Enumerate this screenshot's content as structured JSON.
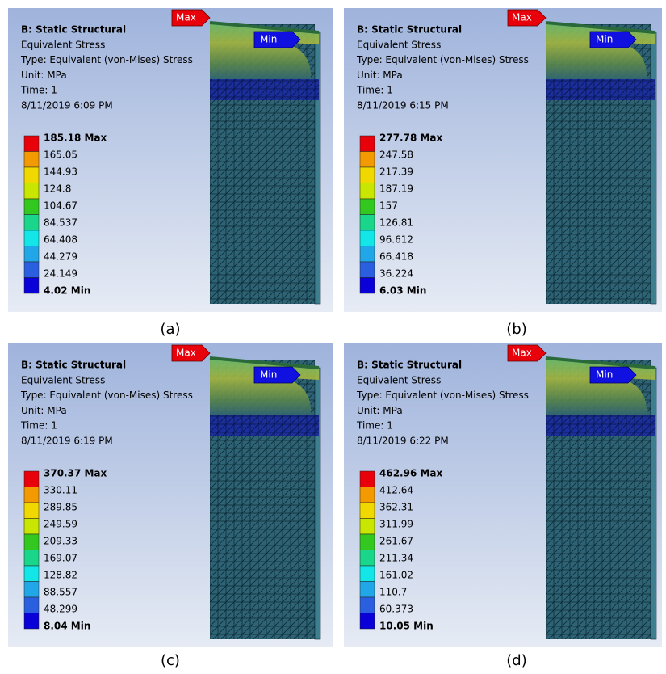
{
  "panels": [
    {
      "title": "B: Static Structural",
      "result": "Equivalent Stress",
      "type": "Type: Equivalent (von-Mises) Stress",
      "unit": "Unit: MPa",
      "time": "Time: 1",
      "date": "8/11/2019 6:09 PM",
      "legend": [
        "185.18 Max",
        "165.05",
        "144.93",
        "124.8",
        "104.67",
        "84.537",
        "64.408",
        "44.279",
        "24.149",
        "4.02 Min"
      ],
      "max_tag": "Max",
      "min_tag": "Min",
      "caption": "(a)"
    },
    {
      "title": "B: Static Structural",
      "result": "Equivalent Stress",
      "type": "Type: Equivalent (von-Mises) Stress",
      "unit": "Unit: MPa",
      "time": "Time: 1",
      "date": "8/11/2019 6:15 PM",
      "legend": [
        "277.78 Max",
        "247.58",
        "217.39",
        "187.19",
        "157",
        "126.81",
        "96.612",
        "66.418",
        "36.224",
        "6.03 Min"
      ],
      "max_tag": "Max",
      "min_tag": "Min",
      "caption": "(b)"
    },
    {
      "title": "B: Static Structural",
      "result": "Equivalent Stress",
      "type": "Type: Equivalent (von-Mises) Stress",
      "unit": "Unit: MPa",
      "time": "Time: 1",
      "date": "8/11/2019 6:19 PM",
      "legend": [
        "370.37 Max",
        "330.11",
        "289.85",
        "249.59",
        "209.33",
        "169.07",
        "128.82",
        "88.557",
        "48.299",
        "8.04 Min"
      ],
      "max_tag": "Max",
      "min_tag": "Min",
      "caption": "(c)"
    },
    {
      "title": "B: Static Structural",
      "result": "Equivalent Stress",
      "type": "Type: Equivalent (von-Mises) Stress",
      "unit": "Unit: MPa",
      "time": "Time: 1",
      "date": "8/11/2019 6:22 PM",
      "legend": [
        "462.96 Max",
        "412.64",
        "362.31",
        "311.99",
        "261.67",
        "211.34",
        "161.02",
        "110.7",
        "60.373",
        "10.05 Min"
      ],
      "max_tag": "Max",
      "min_tag": "Min",
      "caption": "(d)"
    }
  ]
}
